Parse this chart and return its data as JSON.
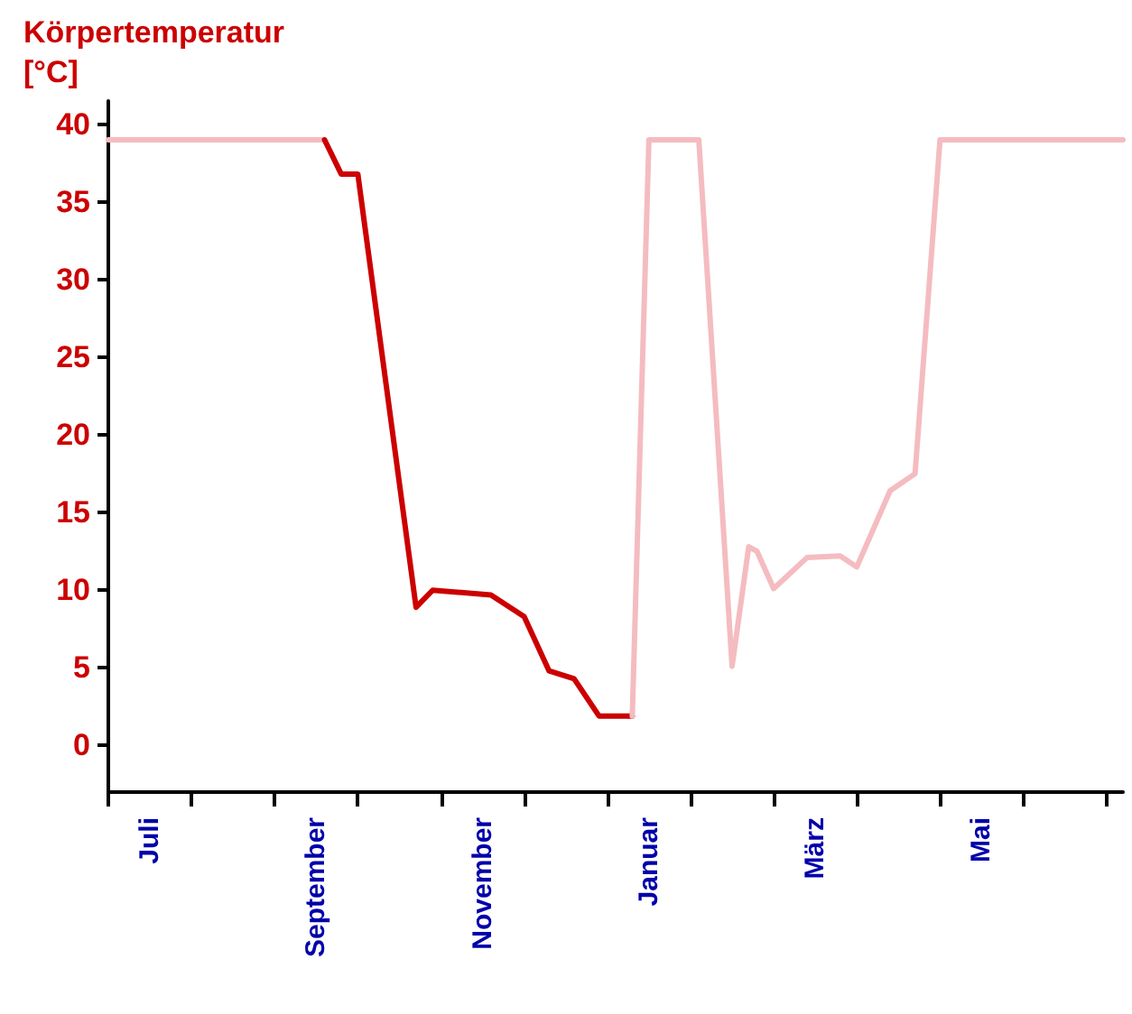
{
  "chart_data": {
    "type": "line",
    "ylabel": "Körpertemperatur [°C]",
    "categories": [
      null,
      null,
      null,
      null,
      null,
      "Juli",
      null,
      null,
      null,
      null,
      null,
      null,
      null,
      null,
      null,
      null,
      null,
      null,
      null,
      null,
      null,
      null,
      null,
      null,
      null,
      "September",
      null,
      null,
      null,
      null,
      null,
      null,
      null,
      null,
      null,
      null,
      null,
      null,
      null,
      null,
      null,
      null,
      null,
      null,
      null,
      "November",
      null,
      null,
      null,
      null,
      null,
      null,
      null,
      null,
      null,
      null,
      null,
      null,
      null,
      null,
      null,
      null,
      null,
      null,
      null,
      "Januar",
      null,
      null,
      null,
      null,
      null,
      null,
      null,
      null,
      null,
      null,
      null,
      null,
      null,
      null,
      null,
      null,
      null,
      null,
      null,
      "März",
      null,
      null,
      null,
      null,
      null,
      null,
      null,
      null,
      null,
      null,
      null,
      null,
      null,
      null,
      null,
      null,
      null,
      null,
      null,
      "Mai",
      null,
      null,
      null,
      null,
      null,
      null,
      null,
      null,
      null,
      null,
      null,
      null,
      null,
      null,
      null,
      null,
      null
    ],
    "ylim": [
      -3,
      41.5
    ],
    "yticks": [
      0,
      5,
      10,
      15,
      20,
      25,
      30,
      35,
      40
    ],
    "grid": false,
    "marker": "none",
    "line_style": "solid",
    "series": [
      {
        "color": "#f4bcc0",
        "values": [
          39,
          null,
          null,
          null,
          null,
          null,
          null,
          null,
          null,
          null,
          null,
          null,
          null,
          null,
          null,
          null,
          null,
          null,
          null,
          null,
          null,
          null,
          null,
          null,
          null,
          null,
          39,
          null,
          null,
          null,
          null,
          null,
          null,
          null,
          null,
          null,
          null,
          null,
          null,
          null,
          null,
          null,
          null,
          null,
          null,
          null,
          null,
          null,
          null,
          null,
          null,
          null,
          null,
          null,
          null,
          null,
          null,
          null,
          null,
          null,
          null,
          null,
          null,
          null,
          null,
          null,
          null,
          null,
          null,
          null,
          null,
          null,
          null,
          null,
          null,
          null,
          null,
          null,
          null,
          null,
          null,
          null,
          null,
          null,
          null,
          null,
          null,
          null,
          null,
          null,
          null,
          null,
          null,
          null,
          null,
          null,
          null,
          null,
          null,
          null,
          null,
          null,
          null,
          null,
          null,
          null,
          null,
          null,
          null,
          null,
          null,
          null,
          null,
          null,
          null,
          null,
          null,
          null,
          null,
          null,
          null,
          null,
          null
        ]
      },
      {
        "color": "#cc0000",
        "values": [
          null,
          null,
          null,
          null,
          null,
          null,
          null,
          null,
          null,
          null,
          null,
          null,
          null,
          null,
          null,
          null,
          null,
          null,
          null,
          null,
          null,
          null,
          null,
          null,
          null,
          null,
          39,
          null,
          36.8,
          null,
          36.8,
          null,
          null,
          null,
          null,
          null,
          null,
          8.9,
          null,
          10,
          null,
          null,
          null,
          null,
          null,
          null,
          9.7,
          null,
          null,
          null,
          8.3,
          null,
          null,
          4.8,
          null,
          null,
          4.3,
          null,
          null,
          1.9,
          null,
          null,
          null,
          1.9,
          null,
          null,
          null,
          null,
          null,
          null,
          null,
          null,
          null,
          null,
          null,
          null,
          null,
          null,
          null,
          null,
          null,
          null,
          null,
          null,
          null,
          null,
          null,
          null,
          null,
          null,
          null,
          null,
          null,
          null,
          null,
          null,
          null,
          null,
          null,
          null,
          null,
          null,
          null,
          null,
          null,
          null,
          null,
          null,
          null,
          null,
          null,
          null,
          null,
          null,
          null,
          null,
          null,
          null,
          null,
          null,
          null,
          null,
          null
        ]
      },
      {
        "color": "#f4bcc0",
        "values": [
          null,
          null,
          null,
          null,
          null,
          null,
          null,
          null,
          null,
          null,
          null,
          null,
          null,
          null,
          null,
          null,
          null,
          null,
          null,
          null,
          null,
          null,
          null,
          null,
          null,
          null,
          null,
          null,
          null,
          null,
          null,
          null,
          null,
          null,
          null,
          null,
          null,
          null,
          null,
          null,
          null,
          null,
          null,
          null,
          null,
          null,
          null,
          null,
          null,
          null,
          null,
          null,
          null,
          null,
          null,
          null,
          null,
          null,
          null,
          null,
          null,
          null,
          null,
          1.9,
          null,
          39,
          null,
          null,
          null,
          null,
          null,
          39,
          null,
          null,
          null,
          5.1,
          null,
          12.8,
          12.5,
          null,
          10.1,
          null,
          null,
          null,
          12.1,
          null,
          null,
          null,
          12.2,
          null,
          11.5,
          null,
          null,
          null,
          16.4,
          null,
          null,
          17.5,
          null,
          null,
          39,
          null,
          null,
          null,
          null,
          null,
          null,
          null,
          null,
          null,
          null,
          null,
          null,
          null,
          null,
          null,
          null,
          null,
          null,
          null,
          null,
          null,
          39
        ]
      }
    ]
  }
}
